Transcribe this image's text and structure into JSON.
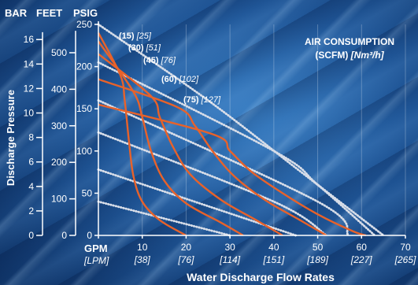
{
  "chart_data": {
    "type": "line",
    "units_header": {
      "bar": "BAR",
      "feet": "FEET",
      "psig": "PSIG"
    },
    "ylabel": "Discharge Pressure",
    "xlabel": "Water Discharge Flow Rates",
    "x_unit_gpm": "GPM",
    "x_unit_lpm": "[LPM]",
    "legend_title_line1": "AIR CONSUMPTION",
    "legend_title_line2_prefix": "(SCFM) ",
    "legend_title_line2_unit": "[Nm³/h]",
    "xlim": [
      0,
      70
    ],
    "ylim_psig": [
      0,
      250
    ],
    "x_ticks_gpm": [
      "0",
      "10",
      "20",
      "30",
      "40",
      "50",
      "60",
      "70"
    ],
    "x_ticks_lpm": [
      "[38]",
      "[76]",
      "[114]",
      "[151]",
      "[189]",
      "[227]",
      "[265]"
    ],
    "y_ticks_psig": [
      "0",
      "50",
      "100",
      "150",
      "200",
      "250"
    ],
    "y_ticks_bar": [
      "0",
      "2",
      "4",
      "6",
      "8",
      "10",
      "12",
      "14",
      "16"
    ],
    "y_ticks_feet": [
      "0",
      "100",
      "200",
      "300",
      "400",
      "500"
    ],
    "air_labels": [
      {
        "scfm": "(15)",
        "nm3h": "[25]"
      },
      {
        "scfm": "(30)",
        "nm3h": "[51]"
      },
      {
        "scfm": "(45)",
        "nm3h": "[76]"
      },
      {
        "scfm": "(60)",
        "nm3h": "[102]"
      },
      {
        "scfm": "(75)",
        "nm3h": "[127]"
      }
    ],
    "series_air": [
      {
        "points": [
          [
            0,
            240
          ],
          [
            5,
            190
          ],
          [
            6,
            160
          ],
          [
            7,
            110
          ],
          [
            8,
            70
          ],
          [
            10,
            40
          ],
          [
            14,
            18
          ],
          [
            20,
            0
          ]
        ]
      },
      {
        "points": [
          [
            0,
            230
          ],
          [
            8,
            170
          ],
          [
            10,
            140
          ],
          [
            12,
            100
          ],
          [
            15,
            65
          ],
          [
            20,
            38
          ],
          [
            28,
            15
          ],
          [
            33,
            0
          ]
        ]
      },
      {
        "points": [
          [
            0,
            215
          ],
          [
            12,
            165
          ],
          [
            14,
            140
          ],
          [
            17,
            105
          ],
          [
            21,
            72
          ],
          [
            28,
            42
          ],
          [
            36,
            18
          ],
          [
            42,
            0
          ]
        ]
      },
      {
        "points": [
          [
            0,
            185
          ],
          [
            18,
            152
          ],
          [
            22,
            130
          ],
          [
            26,
            100
          ],
          [
            31,
            70
          ],
          [
            38,
            42
          ],
          [
            46,
            18
          ],
          [
            52,
            0
          ]
        ]
      },
      {
        "points": [
          [
            0,
            155
          ],
          [
            26,
            120
          ],
          [
            30,
            100
          ],
          [
            35,
            75
          ],
          [
            42,
            50
          ],
          [
            50,
            25
          ],
          [
            58,
            5
          ],
          [
            61,
            0
          ]
        ]
      }
    ],
    "series_npsh": [
      {
        "points": [
          [
            0,
            250
          ],
          [
            25,
            160
          ],
          [
            45,
            80
          ],
          [
            55,
            40
          ],
          [
            65,
            0
          ]
        ]
      },
      {
        "points": [
          [
            0,
            205
          ],
          [
            40,
            100
          ],
          [
            50,
            60
          ],
          [
            63,
            0
          ]
        ]
      },
      {
        "points": [
          [
            0,
            160
          ],
          [
            50,
            40
          ],
          [
            57,
            0
          ]
        ]
      },
      {
        "points": [
          [
            0,
            122
          ],
          [
            40,
            40
          ],
          [
            52,
            0
          ]
        ]
      },
      {
        "points": [
          [
            0,
            78
          ],
          [
            45,
            0
          ]
        ]
      },
      {
        "points": [
          [
            0,
            40
          ],
          [
            30,
            0
          ]
        ]
      }
    ],
    "colors": {
      "air_curve": "#e8622a",
      "pressure_line": "#d7dde8",
      "text": "#ffffff"
    }
  }
}
